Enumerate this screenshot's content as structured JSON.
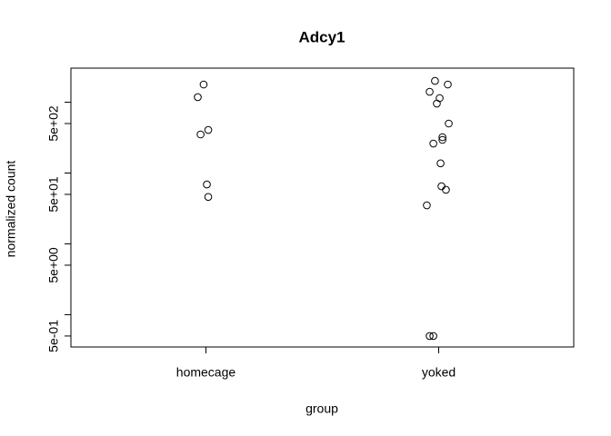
{
  "chart_data": {
    "type": "scatter",
    "title": "Adcy1",
    "x_label": "group",
    "y_label": "normalized count",
    "y_log": true,
    "xlim": [
      0.42,
      2.58
    ],
    "xticks": [
      {
        "value": 1,
        "label": "homecage"
      },
      {
        "value": 2,
        "label": "yoked"
      }
    ],
    "ylim": [
      0.35,
      3030
    ],
    "yticks": [
      {
        "value": 0.5,
        "label": "5e-01"
      },
      {
        "value": 1,
        "label": null
      },
      {
        "value": 5,
        "label": "5e+00"
      },
      {
        "value": 10,
        "label": null
      },
      {
        "value": 50,
        "label": "5e+01"
      },
      {
        "value": 100,
        "label": null
      },
      {
        "value": 500,
        "label": "5e+02"
      },
      {
        "value": 1000,
        "label": null
      }
    ],
    "series": [
      {
        "name": "homecage",
        "color": "#000000",
        "x": [
          0.99,
          0.965,
          1.01,
          0.977,
          1.004,
          1.01
        ],
        "values": [
          1780,
          1180,
          406,
          351,
          69,
          46
        ]
      },
      {
        "name": "yoked",
        "color": "#000000",
        "x": [
          1.984,
          2.039,
          1.961,
          2.004,
          1.992,
          2.043,
          2.016,
          2.016,
          1.977,
          2.008,
          2.012,
          2.031,
          1.949,
          1.961,
          1.977
        ],
        "values": [
          2000,
          1780,
          1405,
          1143,
          957,
          500,
          321,
          294,
          261,
          137,
          65,
          58,
          35,
          0.5,
          0.5
        ]
      }
    ]
  }
}
